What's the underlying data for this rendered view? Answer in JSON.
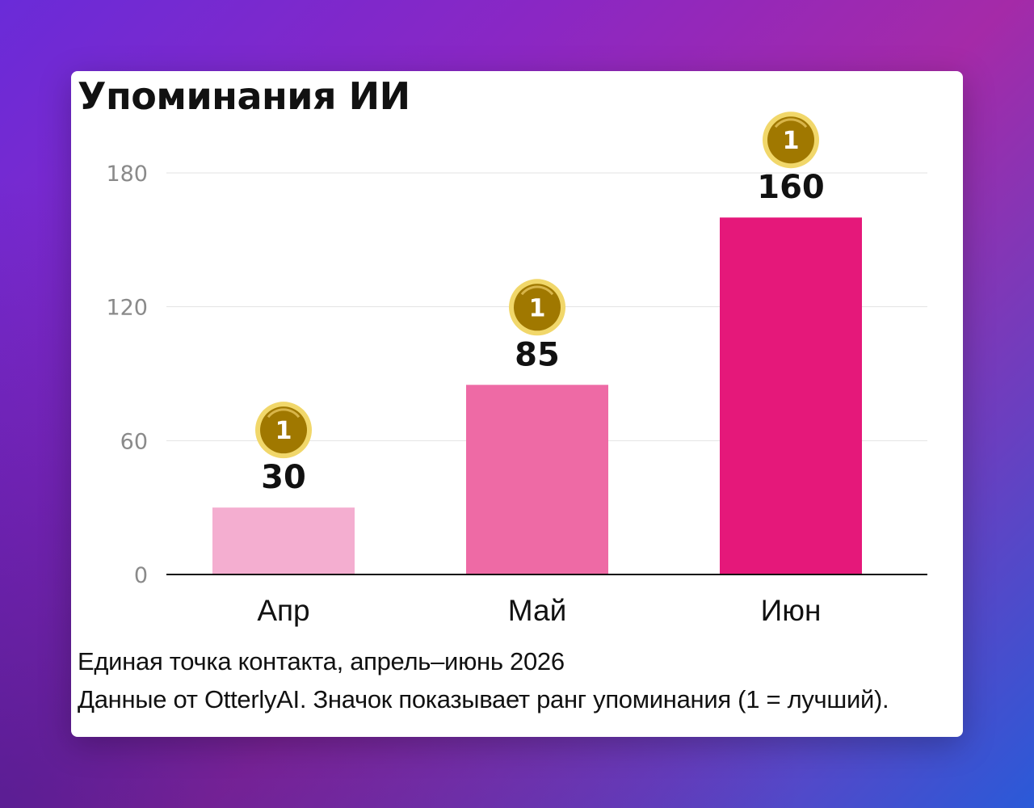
{
  "title": "Упоминания ИИ",
  "caption_line1": "Единая точка контакта, апрель–июнь 2026",
  "caption_line2": "Данные от OtterlyAI. Значок показывает ранг упоминания (1 = лучший).",
  "chart_data": {
    "type": "bar",
    "title": "Упоминания ИИ",
    "categories": [
      "Апр",
      "Май",
      "Июн"
    ],
    "values": [
      30,
      85,
      160
    ],
    "rank_badges": [
      "1",
      "1",
      "1"
    ],
    "yticks": [
      0,
      60,
      120,
      180
    ],
    "ylim": [
      0,
      180
    ],
    "grid": true,
    "bar_colors": [
      "#f4aed0",
      "#ee6aa5",
      "#e5187a"
    ],
    "badge_color": "#c9a227",
    "xlabel": "",
    "ylabel": ""
  }
}
